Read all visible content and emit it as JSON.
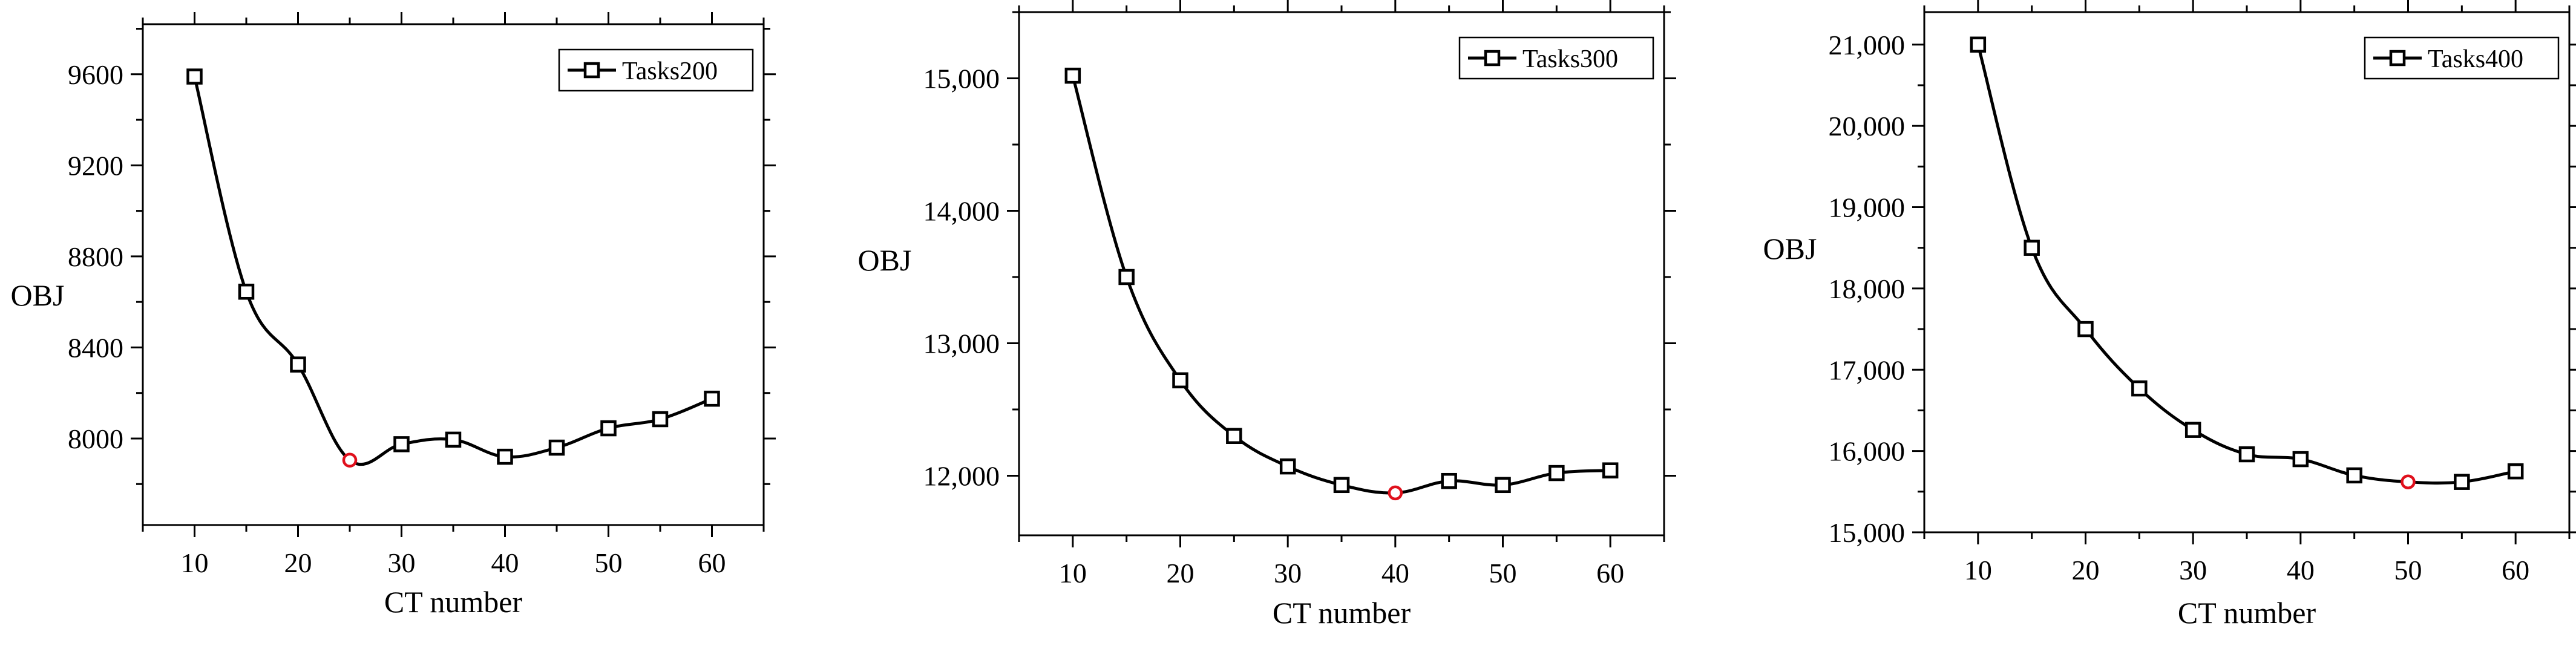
{
  "colors": {
    "line": "#000000",
    "marker_fill": "#ffffff",
    "highlight": "#e0101c",
    "axis": "#000000"
  },
  "chart_data": [
    {
      "type": "line",
      "title": "",
      "xlabel": "CT number",
      "ylabel": "OBJ",
      "legend": "Tasks200",
      "legend_position": "top-right",
      "xlim": [
        5,
        65
      ],
      "ylim": [
        7620,
        9820
      ],
      "xticks": [
        10,
        20,
        30,
        40,
        50,
        60
      ],
      "xtick_labels": [
        "10",
        "20",
        "30",
        "40",
        "50",
        "60"
      ],
      "yticks": [
        8000,
        8400,
        8800,
        9200,
        9600
      ],
      "ytick_labels": [
        "8000",
        "8400",
        "8800",
        "9200",
        "9600"
      ],
      "x": [
        10,
        15,
        20,
        25,
        30,
        35,
        40,
        45,
        50,
        55,
        60
      ],
      "values": [
        9590,
        8645,
        8325,
        7905,
        7975,
        7995,
        7920,
        7960,
        8045,
        8085,
        8175
      ],
      "highlight_index": 3,
      "grid": false
    },
    {
      "type": "line",
      "title": "",
      "xlabel": "CT number",
      "ylabel": "OBJ",
      "legend": "Tasks300",
      "legend_position": "top-right",
      "xlim": [
        5,
        65
      ],
      "ylim": [
        11550,
        15500
      ],
      "xticks": [
        10,
        20,
        30,
        40,
        50,
        60
      ],
      "xtick_labels": [
        "10",
        "20",
        "30",
        "40",
        "50",
        "60"
      ],
      "yticks": [
        12000,
        13000,
        14000,
        15000
      ],
      "ytick_labels": [
        "12,000",
        "13,000",
        "14,000",
        "15,000"
      ],
      "x": [
        10,
        15,
        20,
        25,
        30,
        35,
        40,
        45,
        50,
        55,
        60
      ],
      "values": [
        15020,
        13500,
        12720,
        12300,
        12070,
        11930,
        11870,
        11960,
        11930,
        12020,
        12040
      ],
      "highlight_index": 6,
      "grid": false
    },
    {
      "type": "line",
      "title": "",
      "xlabel": "CT number",
      "ylabel": "OBJ",
      "legend": "Tasks400",
      "legend_position": "top-right",
      "xlim": [
        5,
        65
      ],
      "ylim": [
        15000,
        21400
      ],
      "xticks": [
        10,
        20,
        30,
        40,
        50,
        60
      ],
      "xtick_labels": [
        "10",
        "20",
        "30",
        "40",
        "50",
        "60"
      ],
      "yticks": [
        15000,
        16000,
        17000,
        18000,
        19000,
        20000,
        21000
      ],
      "ytick_labels": [
        "15,000",
        "16,000",
        "17,000",
        "18,000",
        "19,000",
        "20,000",
        "21,000"
      ],
      "x": [
        10,
        15,
        20,
        25,
        30,
        35,
        40,
        45,
        50,
        55,
        60
      ],
      "values": [
        21000,
        18500,
        17500,
        16770,
        16260,
        15960,
        15900,
        15700,
        15620,
        15620,
        15750
      ],
      "highlight_index": 8,
      "grid": false
    }
  ]
}
